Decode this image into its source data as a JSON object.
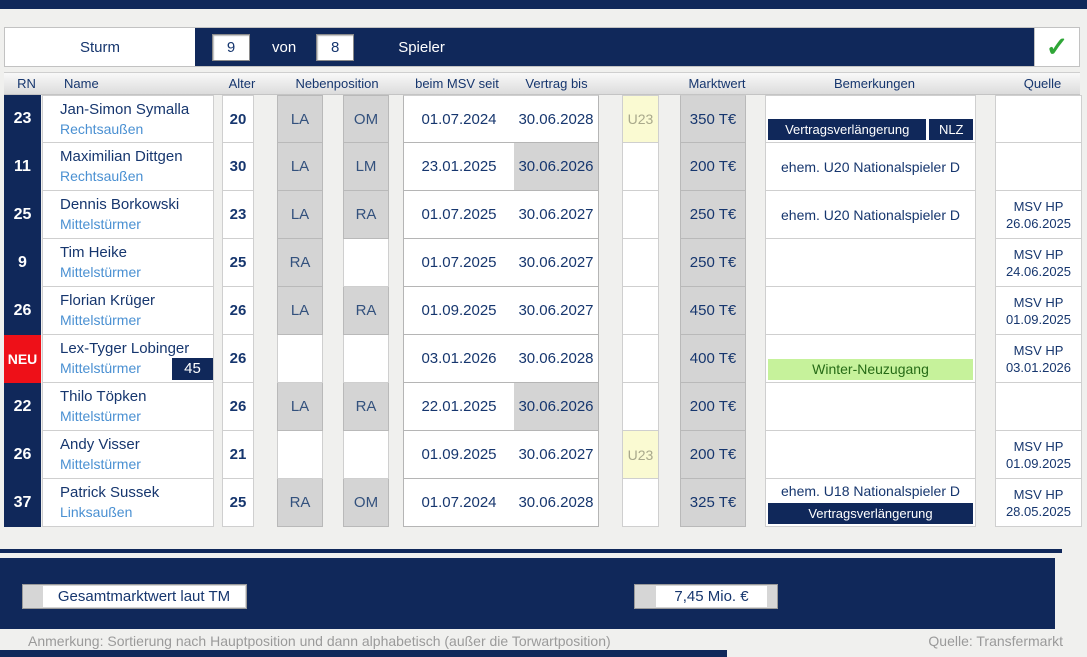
{
  "header": {
    "group": "Sturm",
    "count": "9",
    "von_label": "von",
    "total": "8",
    "spieler_label": "Spieler",
    "check_icon": "✓"
  },
  "columns": {
    "rn": "RN",
    "name": "Name",
    "alter": "Alter",
    "nebenposition": "Nebenposition",
    "seit": "beim MSV seit",
    "vertrag": "Vertrag bis",
    "marktwert": "Marktwert",
    "bemerkungen": "Bemerkungen",
    "quelle": "Quelle"
  },
  "rows": [
    {
      "rn": "23",
      "rn_style": "navy",
      "name": "Jan-Simon Symalla",
      "position": "Rechtsaußen",
      "number_badge": null,
      "age": "20",
      "neben1": "LA",
      "neben2": "OM",
      "seit": "01.07.2024",
      "bis": "30.06.2028",
      "bis_highlight": false,
      "u23": "U23",
      "marktwert": "350 T€",
      "bem_text": null,
      "bem_badges": [
        {
          "label": "Vertragsverlängerung",
          "color": "navy",
          "width": 160
        },
        {
          "label": "NLZ",
          "color": "navy",
          "width": 44
        }
      ],
      "quelle": null
    },
    {
      "rn": "11",
      "rn_style": "navy",
      "name": "Maximilian Dittgen",
      "position": "Rechtsaußen",
      "number_badge": null,
      "age": "30",
      "neben1": "LA",
      "neben2": "LM",
      "seit": "23.01.2025",
      "bis": "30.06.2026",
      "bis_highlight": true,
      "u23": null,
      "marktwert": "200 T€",
      "bem_text": "ehem. U20 Nationalspieler D",
      "bem_badges": [],
      "quelle": null
    },
    {
      "rn": "25",
      "rn_style": "navy",
      "name": "Dennis Borkowski",
      "position": "Mittelstürmer",
      "number_badge": null,
      "age": "23",
      "neben1": "LA",
      "neben2": "RA",
      "seit": "01.07.2025",
      "bis": "30.06.2027",
      "bis_highlight": false,
      "u23": null,
      "marktwert": "250 T€",
      "bem_text": "ehem. U20 Nationalspieler D",
      "bem_badges": [],
      "quelle": {
        "line1": "MSV HP",
        "line2": "26.06.2025"
      }
    },
    {
      "rn": "9",
      "rn_style": "navy",
      "name": "Tim Heike",
      "position": "Mittelstürmer",
      "number_badge": null,
      "age": "25",
      "neben1": "RA",
      "neben2": "",
      "seit": "01.07.2025",
      "bis": "30.06.2027",
      "bis_highlight": false,
      "u23": null,
      "marktwert": "250 T€",
      "bem_text": null,
      "bem_badges": [],
      "quelle": {
        "line1": "MSV HP",
        "line2": "24.06.2025"
      }
    },
    {
      "rn": "26",
      "rn_style": "navy",
      "name": "Florian Krüger",
      "position": "Mittelstürmer",
      "number_badge": null,
      "age": "26",
      "neben1": "LA",
      "neben2": "RA",
      "seit": "01.09.2025",
      "bis": "30.06.2027",
      "bis_highlight": false,
      "u23": null,
      "marktwert": "450 T€",
      "bem_text": null,
      "bem_badges": [],
      "quelle": {
        "line1": "MSV HP",
        "line2": "01.09.2025"
      }
    },
    {
      "rn": "NEU",
      "rn_style": "red",
      "name": "Lex-Tyger Lobinger",
      "position": "Mittelstürmer",
      "number_badge": "45",
      "age": "26",
      "neben1": "",
      "neben2": "",
      "seit": "03.01.2026",
      "bis": "30.06.2028",
      "bis_highlight": false,
      "u23": null,
      "marktwert": "400 T€",
      "bem_text": null,
      "bem_badges": [
        {
          "label": "Winter-Neuzugang",
          "color": "green",
          "width": "full"
        }
      ],
      "quelle": {
        "line1": "MSV HP",
        "line2": "03.01.2026"
      }
    },
    {
      "rn": "22",
      "rn_style": "navy",
      "name": "Thilo Töpken",
      "position": "Mittelstürmer",
      "number_badge": null,
      "age": "26",
      "neben1": "LA",
      "neben2": "RA",
      "seit": "22.01.2025",
      "bis": "30.06.2026",
      "bis_highlight": true,
      "u23": null,
      "marktwert": "200 T€",
      "bem_text": null,
      "bem_badges": [],
      "quelle": null
    },
    {
      "rn": "26",
      "rn_style": "navy",
      "name": "Andy Visser",
      "position": "Mittelstürmer",
      "number_badge": null,
      "age": "21",
      "neben1": "",
      "neben2": "",
      "seit": "01.09.2025",
      "bis": "30.06.2027",
      "bis_highlight": false,
      "u23": "U23",
      "marktwert": "200 T€",
      "bem_text": null,
      "bem_badges": [],
      "quelle": {
        "line1": "MSV HP",
        "line2": "01.09.2025"
      }
    },
    {
      "rn": "37",
      "rn_style": "navy",
      "name": "Patrick Sussek",
      "position": "Linksaußen",
      "number_badge": null,
      "age": "25",
      "neben1": "RA",
      "neben2": "OM",
      "seit": "01.07.2024",
      "bis": "30.06.2028",
      "bis_highlight": false,
      "u23": null,
      "marktwert": "325 T€",
      "bem_text": "ehem. U18 Nationalspieler D",
      "bem_badges": [
        {
          "label": "Vertragsverlängerung",
          "color": "navy",
          "width": "full"
        }
      ],
      "quelle": {
        "line1": "MSV HP",
        "line2": "28.05.2025"
      }
    }
  ],
  "footer": {
    "total_label": "Gesamtmarktwert laut TM",
    "total_value": "7,45 Mio. €",
    "note": "Anmerkung: Sortierung nach Hauptposition und dann alphabetisch (außer die Torwartposition)",
    "source": "Quelle: Transfermarkt"
  },
  "colors": {
    "navy": "#10285a",
    "red_new": "#ee1018",
    "cell_gray": "#d4d4d4",
    "u23_yellow": "#fafad2",
    "green_badge": "#c6f29b",
    "position_blue": "#4a90d2",
    "check_green": "#2fa637"
  }
}
